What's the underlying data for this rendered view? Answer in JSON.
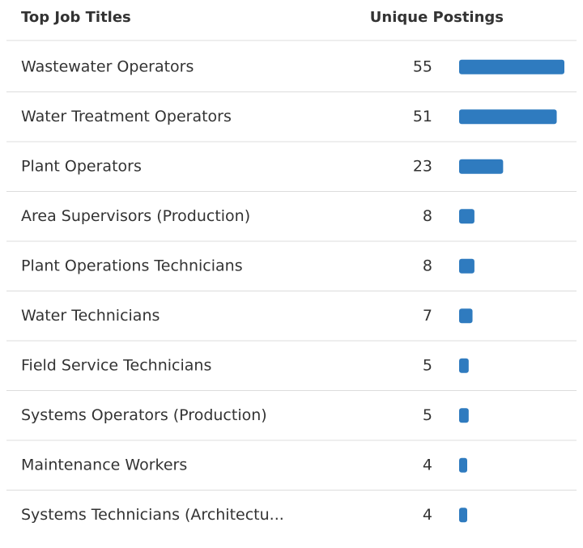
{
  "chart_data": {
    "type": "bar",
    "category_label": "Top Job Titles",
    "value_label": "Unique Postings",
    "categories": [
      "Wastewater Operators",
      "Water Treatment Operators",
      "Plant Operators",
      "Area Supervisors (Production)",
      "Plant Operations Technicians",
      "Water Technicians",
      "Field Service Technicians",
      "Systems Operators (Production)",
      "Maintenance Workers",
      "Systems Technicians (Architectu..."
    ],
    "values": [
      55,
      51,
      23,
      8,
      8,
      7,
      5,
      5,
      4,
      4
    ],
    "color": "#2f7bbf"
  }
}
